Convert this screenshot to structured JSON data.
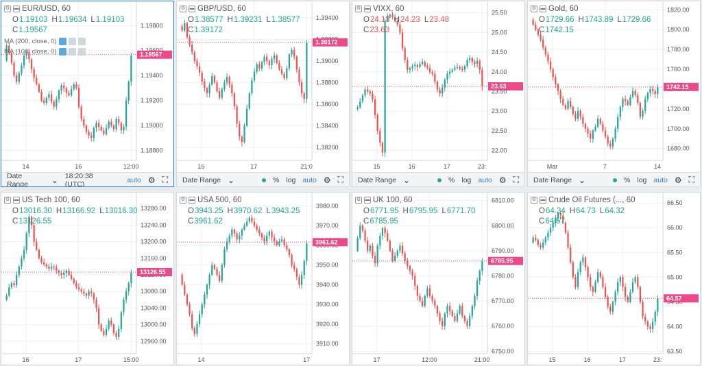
{
  "colors": {
    "up": "#26a69a",
    "down": "#ef5350",
    "tag": "#e84a8a",
    "grid": "#eef0f2",
    "active_border": "#2f7fd0"
  },
  "bottom_bar": {
    "date_range_label": "Date Range",
    "time_readout": "18:20:38 (UTC)",
    "auto_label": "auto",
    "percent_label": "%",
    "log_label": "log"
  },
  "panes": [
    {
      "title": "EUR/USD, 60",
      "digits": 5,
      "ohlc": [
        {
          "k": "O",
          "v": "1.19103"
        },
        {
          "k": "H",
          "v": "1.19634"
        },
        {
          "k": "L",
          "v": "1.19103"
        },
        {
          "k": "C",
          "v": "1.19567"
        }
      ],
      "ohlc_dir": "up",
      "indicators": [
        "MA (200, close, 0)",
        "MA (100, close, 0)"
      ],
      "yticks": [
        "1.19800",
        "1.19600",
        "1.19400",
        "1.19200",
        "1.19000",
        "1.18800"
      ],
      "yrange": [
        1.1872,
        1.1995
      ],
      "xticks": [
        "14",
        "16",
        "12:00"
      ],
      "last": "1.19567",
      "last_value": 1.19567,
      "series": [
        1.1952,
        1.1964,
        1.1958,
        1.195,
        1.194,
        1.1935,
        1.1942,
        1.1948,
        1.1956,
        1.1959,
        1.1953,
        1.1945,
        1.1938,
        1.1933,
        1.1927,
        1.192,
        1.1918,
        1.1922,
        1.1925,
        1.1919,
        1.1915,
        1.1921,
        1.1928,
        1.1932,
        1.193,
        1.1926,
        1.1924,
        1.1929,
        1.1933,
        1.193,
        1.1915,
        1.1905,
        1.19,
        1.1895,
        1.1892,
        1.189,
        1.1898,
        1.1902,
        1.1899,
        1.1896,
        1.1893,
        1.1898,
        1.1903,
        1.19,
        1.1897,
        1.1905,
        1.1902,
        1.1896,
        1.1899,
        1.192,
        1.1935,
        1.1956
      ]
    },
    {
      "title": "GBP/USD, 60",
      "digits": 5,
      "ohlc": [
        {
          "k": "O",
          "v": "1.38577"
        },
        {
          "k": "H",
          "v": "1.39231"
        },
        {
          "k": "L",
          "v": "1.38577"
        },
        {
          "k": "C",
          "v": "1.39172"
        }
      ],
      "ohlc_dir": "up",
      "indicators": [],
      "yticks": [
        "1.39400",
        "1.39200",
        "1.39000",
        "1.38800",
        "1.38600",
        "1.38400",
        "1.38200"
      ],
      "yrange": [
        1.3808,
        1.395
      ],
      "xticks": [
        "16",
        "17",
        "21:0"
      ],
      "last": "1.39172",
      "last_value": 1.39172,
      "series": [
        1.3932,
        1.3928,
        1.3935,
        1.3922,
        1.3915,
        1.3908,
        1.39,
        1.3895,
        1.3889,
        1.3881,
        1.3875,
        1.387,
        1.3878,
        1.3886,
        1.388,
        1.3872,
        1.3866,
        1.3874,
        1.388,
        1.3885,
        1.3878,
        1.387,
        1.3858,
        1.3842,
        1.383,
        1.3825,
        1.384,
        1.3856,
        1.387,
        1.3882,
        1.389,
        1.3897,
        1.3893,
        1.3899,
        1.3904,
        1.39,
        1.3896,
        1.3902,
        1.3905,
        1.3898,
        1.3892,
        1.3888,
        1.3884,
        1.3893,
        1.3906,
        1.391,
        1.3904,
        1.3892,
        1.388,
        1.387,
        1.3865,
        1.3917
      ]
    },
    {
      "title": "VIXX, 60",
      "digits": 2,
      "ohlc": [
        {
          "k": "O",
          "v": "24.13"
        },
        {
          "k": "H",
          "v": "24.23"
        },
        {
          "k": "L",
          "v": "23.48"
        },
        {
          "k": "C",
          "v": "23.63"
        }
      ],
      "ohlc_dir": "down",
      "indicators": [],
      "yticks": [
        "25.50",
        "25.00",
        "24.50",
        "24.00",
        "23.50",
        "23.00",
        "22.50",
        "22.00"
      ],
      "yrange": [
        21.75,
        25.65
      ],
      "xticks": [
        "15",
        "16",
        "17",
        "23:"
      ],
      "last": "23.63",
      "last_value": 23.63,
      "series": [
        23.05,
        23.1,
        23.25,
        23.4,
        23.55,
        23.5,
        23.45,
        23.3,
        22.9,
        22.5,
        22.2,
        21.95,
        25.3,
        25.4,
        25.45,
        25.38,
        25.3,
        25.2,
        25.0,
        24.6,
        24.3,
        24.05,
        24.1,
        24.15,
        24.18,
        24.12,
        24.2,
        24.25,
        24.15,
        24.1,
        24.0,
        23.95,
        23.75,
        23.55,
        23.45,
        23.6,
        23.8,
        23.95,
        24.0,
        24.05,
        24.1,
        24.12,
        24.08,
        24.05,
        24.15,
        24.3,
        24.35,
        24.25,
        24.2,
        24.28,
        24.05,
        23.63
      ]
    },
    {
      "title": "Gold, 60",
      "digits": 2,
      "ohlc": [
        {
          "k": "O",
          "v": "1729.66"
        },
        {
          "k": "H",
          "v": "1743.89"
        },
        {
          "k": "L",
          "v": "1729.66"
        },
        {
          "k": "C",
          "v": "1742.15"
        }
      ],
      "ohlc_dir": "up",
      "indicators": [],
      "yticks": [
        "1820.00",
        "1800.00",
        "1780.00",
        "1760.00",
        "1740.00",
        "1720.00",
        "1700.00",
        "1680.00"
      ],
      "yrange": [
        1668,
        1823
      ],
      "xticks": [
        "Mar",
        "7",
        "14"
      ],
      "last": "1742.15",
      "last_value": 1742.15,
      "series": [
        1810,
        1805,
        1800,
        1795,
        1790,
        1782,
        1775,
        1768,
        1760,
        1752,
        1745,
        1738,
        1730,
        1724,
        1720,
        1728,
        1722,
        1715,
        1710,
        1718,
        1712,
        1705,
        1700,
        1695,
        1690,
        1698,
        1702,
        1710,
        1705,
        1698,
        1692,
        1685,
        1682,
        1690,
        1700,
        1712,
        1722,
        1730,
        1728,
        1724,
        1732,
        1738,
        1734,
        1726,
        1712,
        1718,
        1730,
        1736,
        1740,
        1738,
        1735,
        1742
      ]
    },
    {
      "title": "US Tech 100, 60",
      "digits": 2,
      "ohlc": [
        {
          "k": "O",
          "v": "13016.30"
        },
        {
          "k": "H",
          "v": "13166.92"
        },
        {
          "k": "L",
          "v": "13016.30"
        },
        {
          "k": "C",
          "v": "13126.55"
        }
      ],
      "ohlc_dir": "up",
      "indicators": [],
      "yticks": [
        "13280.00",
        "13240.00",
        "13200.00",
        "13160.00",
        "13120.00",
        "13080.00",
        "13040.00",
        "13000.00",
        "12960.00"
      ],
      "yrange": [
        12930,
        13305
      ],
      "xticks": [
        "16",
        "17",
        "15:00"
      ],
      "last": "13126.55",
      "last_value": 13126.55,
      "series": [
        13060,
        13070,
        13090,
        13100,
        13095,
        13120,
        13140,
        13160,
        13180,
        13220,
        13260,
        13240,
        13200,
        13180,
        13160,
        13150,
        13145,
        13140,
        13135,
        13140,
        13138,
        13130,
        13125,
        13120,
        13125,
        13130,
        13120,
        13110,
        13100,
        13090,
        13085,
        13080,
        13075,
        13070,
        13080,
        13075,
        13060,
        13040,
        13000,
        12985,
        12975,
        12990,
        13010,
        13000,
        12980,
        12970,
        12990,
        13030,
        13060,
        13080,
        13100,
        13126
      ]
    },
    {
      "title": "USA 500, 60",
      "digits": 2,
      "ohlc": [
        {
          "k": "O",
          "v": "3943.25"
        },
        {
          "k": "H",
          "v": "3970.62"
        },
        {
          "k": "L",
          "v": "3943.25"
        },
        {
          "k": "C",
          "v": "3961.62"
        }
      ],
      "ohlc_dir": "up",
      "indicators": [],
      "yticks": [
        "3980.00",
        "3970.00",
        "3960.00",
        "3950.00",
        "3940.00",
        "3930.00",
        "3920.00",
        "3910.00"
      ],
      "yrange": [
        3905,
        3984
      ],
      "xticks": [
        "14",
        "17"
      ],
      "last": "3961.62",
      "last_value": 3961.62,
      "series": [
        3945,
        3940,
        3935,
        3930,
        3925,
        3918,
        3915,
        3920,
        3925,
        3930,
        3935,
        3940,
        3945,
        3950,
        3948,
        3945,
        3942,
        3950,
        3958,
        3962,
        3965,
        3968,
        3966,
        3963,
        3965,
        3968,
        3970,
        3972,
        3974,
        3972,
        3970,
        3968,
        3966,
        3964,
        3962,
        3965,
        3967,
        3964,
        3962,
        3960,
        3962,
        3963,
        3960,
        3958,
        3955,
        3950,
        3948,
        3944,
        3940,
        3945,
        3952,
        3961
      ]
    },
    {
      "title": "UK 100, 60",
      "digits": 2,
      "ohlc": [
        {
          "k": "O",
          "v": "6771.95"
        },
        {
          "k": "H",
          "v": "6795.95"
        },
        {
          "k": "L",
          "v": "6771.70"
        },
        {
          "k": "C",
          "v": "6785.95"
        }
      ],
      "ohlc_dir": "up",
      "indicators": [],
      "yticks": [
        "6810.00",
        "6800.00",
        "6790.00",
        "6780.00",
        "6770.00",
        "6760.00",
        "6750.00"
      ],
      "yrange": [
        6749,
        6811
      ],
      "xticks": [
        "17",
        "12:00",
        "21:00"
      ],
      "last": "6785.95",
      "last_value": 6785.95,
      "series": [
        6790,
        6795,
        6800,
        6798,
        6794,
        6790,
        6792,
        6788,
        6785,
        6792,
        6796,
        6799,
        6797,
        6794,
        6790,
        6786,
        6788,
        6790,
        6792,
        6789,
        6786,
        6784,
        6782,
        6780,
        6776,
        6772,
        6770,
        6768,
        6772,
        6775,
        6772,
        6770,
        6768,
        6765,
        6762,
        6760,
        6765,
        6768,
        6766,
        6764,
        6762,
        6765,
        6768,
        6764,
        6762,
        6760,
        6764,
        6768,
        6772,
        6778,
        6782,
        6786
      ]
    },
    {
      "title": "Crude Oil Futures (..., 60",
      "digits": 2,
      "ohlc": [
        {
          "k": "O",
          "v": "64.34"
        },
        {
          "k": "H",
          "v": "64.73"
        },
        {
          "k": "L",
          "v": "64.32"
        },
        {
          "k": "C",
          "v": "64.57"
        }
      ],
      "ohlc_dir": "up",
      "indicators": [],
      "yticks": [
        "66.50",
        "66.00",
        "65.50",
        "65.00",
        "64.50",
        "64.00",
        "63.50"
      ],
      "yrange": [
        63.45,
        66.6
      ],
      "xticks": [
        "15",
        "16",
        "17",
        "23:"
      ],
      "last": "64.57",
      "last_value": 64.57,
      "series": [
        65.7,
        65.8,
        65.75,
        65.65,
        65.6,
        65.7,
        65.8,
        65.9,
        66.0,
        66.1,
        66.2,
        66.3,
        66.25,
        66.1,
        65.9,
        65.6,
        65.3,
        65.0,
        64.8,
        65.1,
        65.3,
        65.4,
        65.2,
        65.0,
        64.8,
        64.7,
        64.9,
        65.1,
        65.0,
        64.8,
        64.6,
        64.4,
        64.3,
        64.5,
        64.7,
        64.9,
        65.0,
        64.8,
        64.6,
        64.5,
        64.7,
        64.9,
        65.0,
        64.8,
        64.5,
        64.2,
        64.1,
        64.0,
        63.95,
        64.1,
        64.3,
        64.57
      ]
    }
  ]
}
